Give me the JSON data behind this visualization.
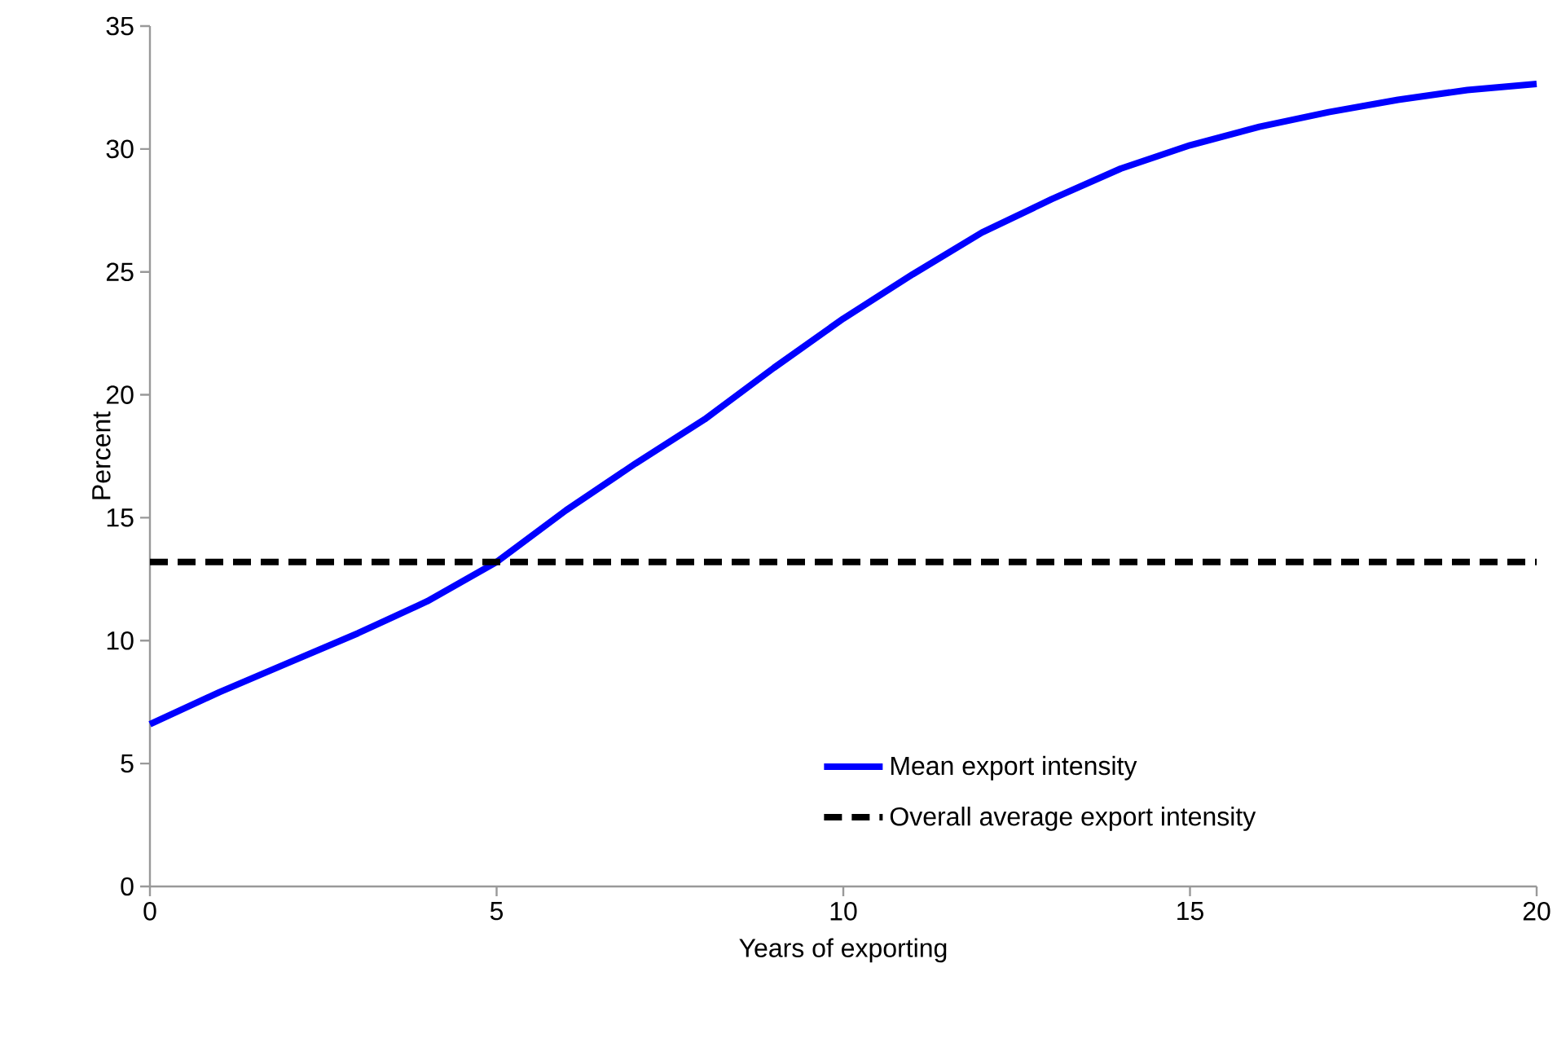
{
  "chart_data": {
    "type": "line",
    "xlabel": "Years of exporting",
    "ylabel": "Percent",
    "x": [
      0,
      1,
      2,
      3,
      4,
      5,
      6,
      7,
      8,
      9,
      10,
      11,
      12,
      13,
      14,
      15,
      16,
      17,
      18,
      19,
      20
    ],
    "series": [
      {
        "name": "Mean export intensity",
        "color": "#0000ff",
        "values": [
          6.6,
          7.9,
          9.1,
          10.3,
          11.6,
          13.2,
          15.3,
          17.2,
          19.0,
          21.1,
          23.1,
          24.9,
          26.6,
          27.95,
          29.2,
          30.15,
          30.9,
          31.5,
          32.0,
          32.4,
          32.65
        ]
      }
    ],
    "ref_lines": [
      {
        "axis": "y",
        "value": 13.2,
        "label": "Overall average export intensity",
        "color": "#000000",
        "line_style": "dashed"
      }
    ],
    "xlim": [
      0,
      20
    ],
    "xticks": [
      0,
      5,
      10,
      15,
      20
    ],
    "ylim": [
      0,
      35
    ],
    "yticks": [
      0,
      5,
      10,
      15,
      20,
      25,
      30,
      35
    ],
    "grid": false,
    "legend": "bottom right",
    "marker": "none",
    "line_style": "solid"
  }
}
